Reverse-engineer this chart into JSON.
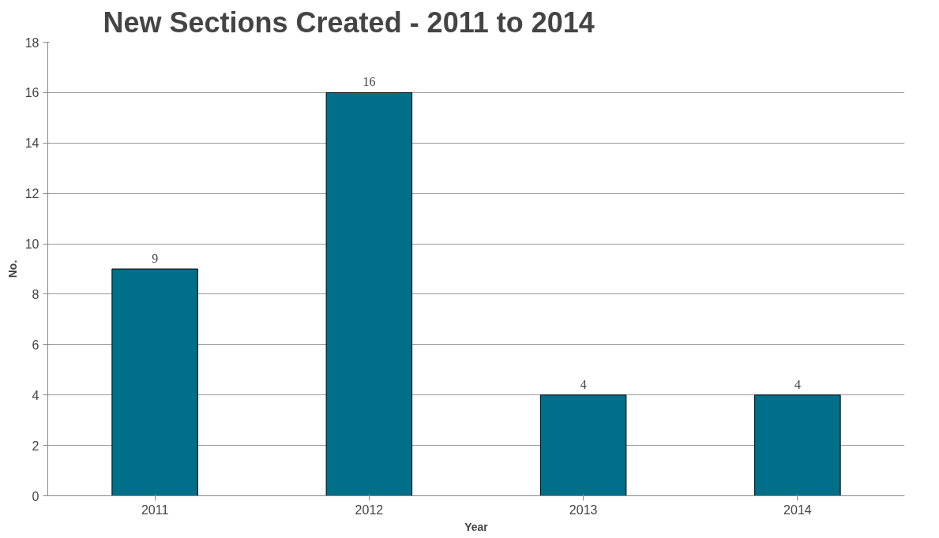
{
  "chart_data": {
    "type": "bar",
    "title": "New Sections Created - 2011 to 2014",
    "xlabel": "Year",
    "ylabel": "No.",
    "categories": [
      "2011",
      "2012",
      "2013",
      "2014"
    ],
    "values": [
      9,
      16,
      4,
      4
    ],
    "color": "#006f8a",
    "ylim": [
      0,
      18
    ],
    "yticks": [
      0,
      2,
      4,
      6,
      8,
      10,
      12,
      14,
      16,
      18
    ],
    "grid": "y",
    "data_labels": true
  }
}
